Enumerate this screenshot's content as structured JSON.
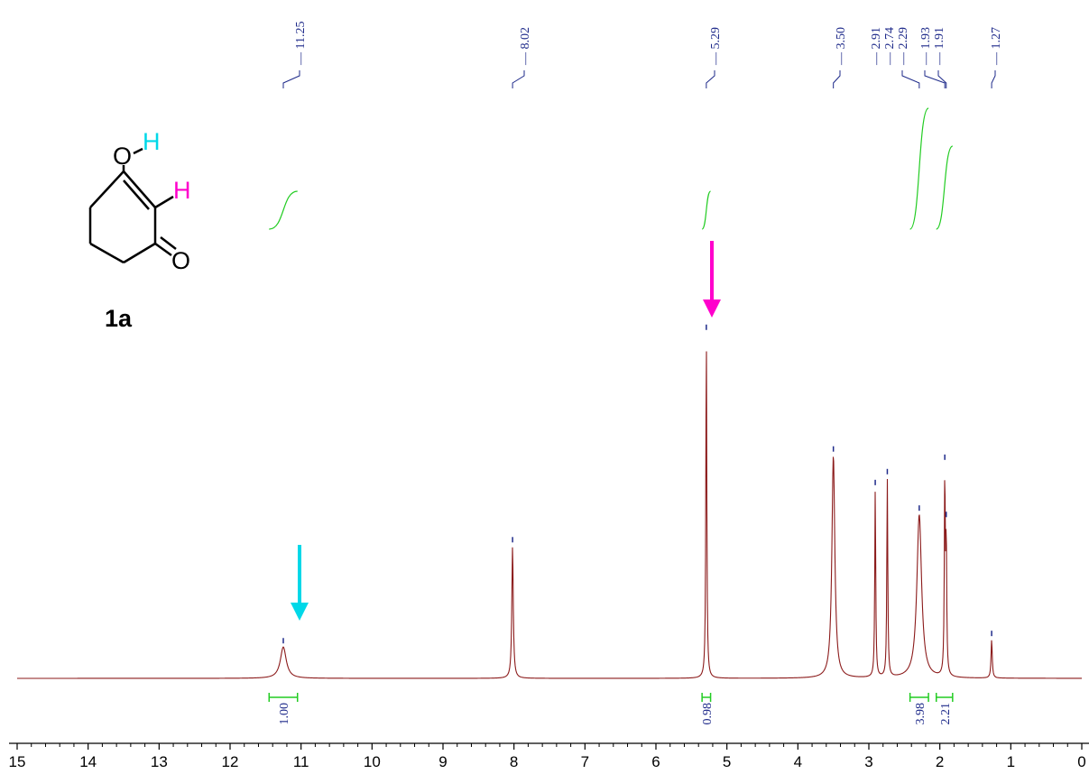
{
  "chart_data": {
    "type": "line",
    "xlim": [
      15,
      0
    ],
    "x_ticks": [
      15,
      14,
      13,
      12,
      11,
      10,
      9,
      8,
      7,
      6,
      5,
      4,
      3,
      2,
      1,
      0
    ],
    "xlabel": "",
    "ylabel": "",
    "grid": false,
    "colors": {
      "spectrum": "#8b1a1a",
      "peak_label": "#1e2a8a",
      "integral": "#22cc22",
      "oh_arrow": "#00d8e8",
      "ch_arrow": "#ff00cc"
    },
    "peaks": [
      {
        "shift": 11.25,
        "height": 0.09,
        "width": 0.05
      },
      {
        "shift": 8.02,
        "height": 0.38,
        "width": 0.012
      },
      {
        "shift": 5.29,
        "height": 0.99,
        "width": 0.008
      },
      {
        "shift": 3.5,
        "height": 0.64,
        "width": 0.025
      },
      {
        "shift": 2.91,
        "height": 0.54,
        "width": 0.008
      },
      {
        "shift": 2.74,
        "height": 0.57,
        "width": 0.008
      },
      {
        "shift": 2.29,
        "height": 0.47,
        "width": 0.04
      },
      {
        "shift": 1.93,
        "height": 0.56,
        "width": 0.008
      },
      {
        "shift": 1.91,
        "height": 0.37,
        "width": 0.008
      },
      {
        "shift": 1.27,
        "height": 0.11,
        "width": 0.01
      }
    ],
    "peak_labels": [
      "11.25",
      "8.02",
      "5.29",
      "3.50",
      "2.91",
      "2.74",
      "2.29",
      "1.93",
      "1.91",
      "1.27"
    ],
    "integrations": [
      {
        "from": 11.45,
        "to": 11.05,
        "value": "1.00"
      },
      {
        "from": 5.35,
        "to": 5.23,
        "value": "0.98"
      },
      {
        "from": 2.42,
        "to": 2.16,
        "value": "3.98"
      },
      {
        "from": 2.05,
        "to": 1.82,
        "value": "2.21"
      }
    ]
  },
  "structure": {
    "compound_label": "1a",
    "atom_labels": {
      "oxygen_hydroxyl": "O",
      "hydrogen_hydroxyl": "H",
      "hydrogen_vinyl": "H",
      "oxygen_carbonyl": "O"
    }
  }
}
